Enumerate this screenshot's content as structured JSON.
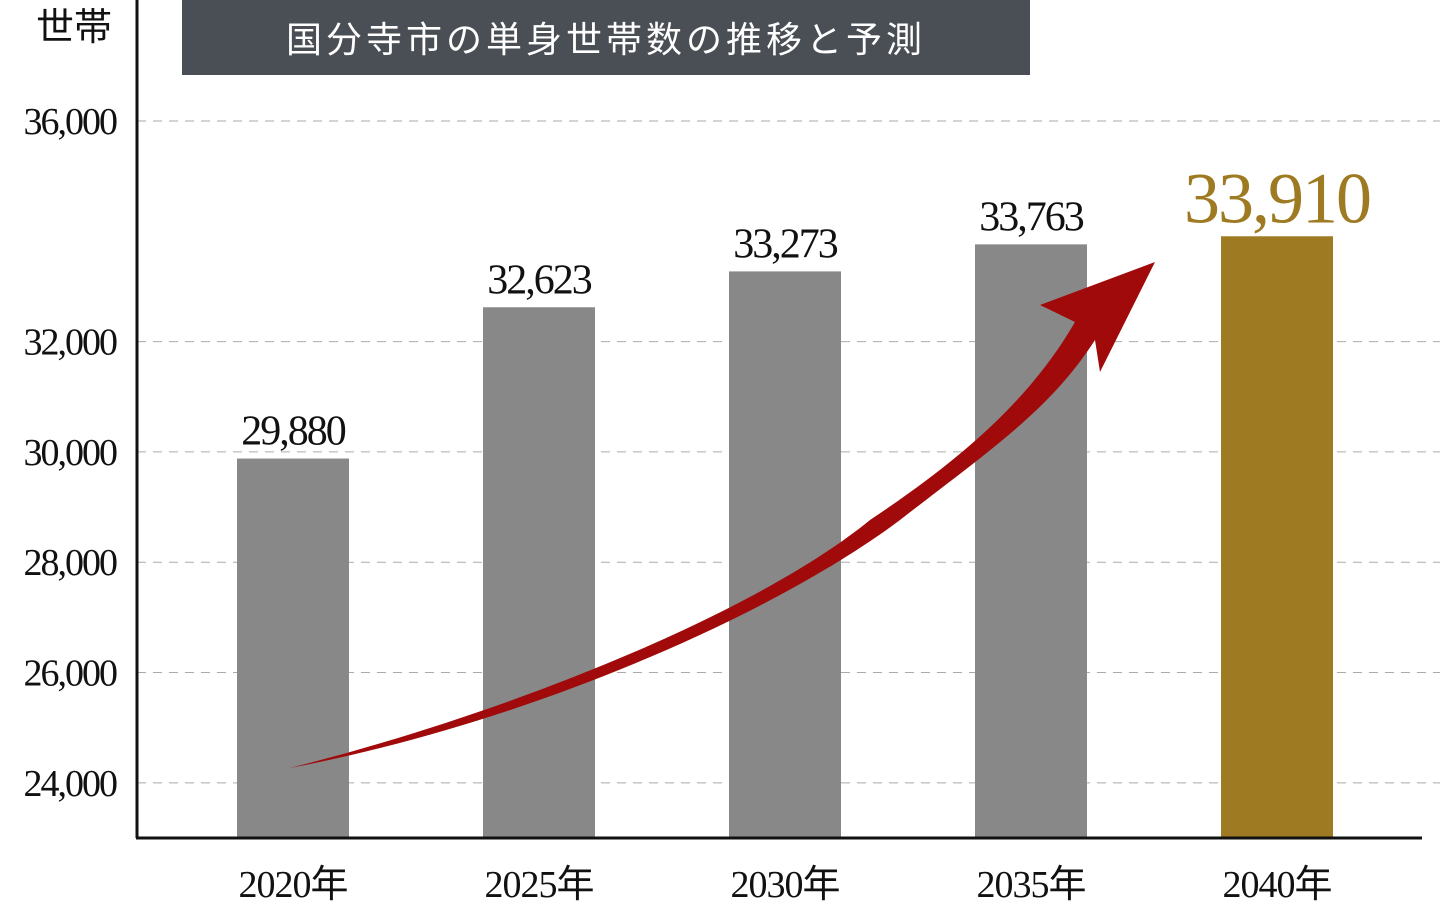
{
  "chart_data": {
    "type": "bar",
    "title": "国分寺市の単身世帯数の推移と予測",
    "y_label": "世帯",
    "categories": [
      "2020年",
      "2025年",
      "2030年",
      "2035年",
      "2040年"
    ],
    "values": [
      29880,
      32623,
      33273,
      33763,
      33910
    ],
    "value_labels": [
      "29,880",
      "32,623",
      "33,273",
      "33,763",
      "33,910"
    ],
    "colors": [
      "#888888",
      "#888888",
      "#888888",
      "#888888",
      "#9e7a22"
    ],
    "ylim": [
      23000,
      36000
    ],
    "yticks": [
      {
        "value": 24000,
        "label": "24,000"
      },
      {
        "value": 26000,
        "label": "26,000"
      },
      {
        "value": 28000,
        "label": "28,000"
      },
      {
        "value": 30000,
        "label": "30,000"
      },
      {
        "value": 32000,
        "label": "32,000"
      },
      {
        "value": 36000,
        "label": "36,000"
      }
    ],
    "grid": true
  }
}
